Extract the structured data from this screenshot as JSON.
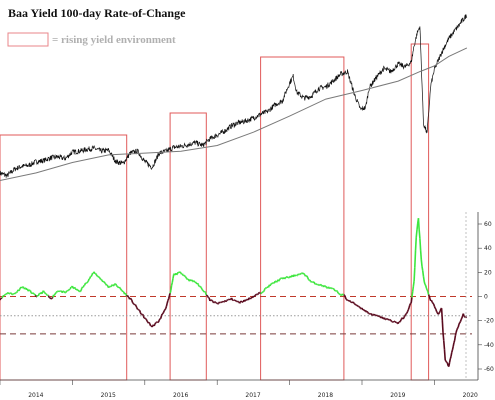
{
  "chart_data": {
    "type": "line",
    "title": "Baa Yield 100-day Rate-of-Change",
    "legend": {
      "label": "= rising yield environment",
      "swatch_color": "#e8868a",
      "placement": "top-left"
    },
    "x_ticks": [
      "2014",
      "2015",
      "2016",
      "2017",
      "2018",
      "2019",
      "2020"
    ],
    "y_ticks_right": [
      "60",
      "40",
      "20",
      "0",
      "-20",
      "-40",
      "-60"
    ],
    "ylim_lower": [
      -65,
      65
    ],
    "reference_lines": [
      {
        "value": 0,
        "style": "dashed",
        "color": "#c0392b"
      },
      {
        "value": -16,
        "style": "dotted",
        "color": "#9a9a9a"
      },
      {
        "value": -31,
        "style": "dashed",
        "color": "#7a3b3b"
      }
    ],
    "colors": {
      "price": "#111111",
      "moving_average": "#7a7a7a",
      "roc_positive": "#3ee63e",
      "roc_negative": "#5a0a1e",
      "box": "#e05a5a"
    },
    "rising_yield_periods": [
      {
        "start": 2014.0,
        "end": 2015.75
      },
      {
        "start": 2016.35,
        "end": 2016.85
      },
      {
        "start": 2017.6,
        "end": 2018.75
      },
      {
        "start": 2019.68,
        "end": 2019.92
      }
    ],
    "price_series": {
      "name": "",
      "x": [
        2014.0,
        2014.1,
        2014.2,
        2014.3,
        2014.4,
        2014.5,
        2014.6,
        2014.7,
        2014.8,
        2014.9,
        2015.0,
        2015.1,
        2015.2,
        2015.3,
        2015.4,
        2015.5,
        2015.6,
        2015.7,
        2015.8,
        2015.9,
        2016.0,
        2016.1,
        2016.2,
        2016.3,
        2016.4,
        2016.5,
        2016.6,
        2016.7,
        2016.8,
        2016.9,
        2017.0,
        2017.1,
        2017.2,
        2017.3,
        2017.4,
        2017.5,
        2017.6,
        2017.7,
        2017.8,
        2017.9,
        2018.0,
        2018.05,
        2018.1,
        2018.2,
        2018.3,
        2018.4,
        2018.5,
        2018.6,
        2018.7,
        2018.8,
        2018.9,
        2018.98,
        2019.05,
        2019.1,
        2019.2,
        2019.3,
        2019.4,
        2019.5,
        2019.6,
        2019.68,
        2019.72,
        2019.76,
        2019.8,
        2019.85,
        2019.9,
        2019.95,
        2020.0,
        2020.1,
        2020.2,
        2020.3,
        2020.4,
        2020.45
      ],
      "values": [
        1830,
        1800,
        1870,
        1900,
        1910,
        1950,
        1960,
        1990,
        2000,
        1980,
        2050,
        2060,
        2080,
        2090,
        2060,
        2070,
        1950,
        1930,
        2040,
        2060,
        1950,
        1890,
        2040,
        2060,
        2100,
        2110,
        2130,
        2150,
        2120,
        2190,
        2230,
        2270,
        2330,
        2360,
        2380,
        2410,
        2450,
        2480,
        2550,
        2590,
        2780,
        2850,
        2680,
        2620,
        2640,
        2720,
        2740,
        2800,
        2870,
        2900,
        2650,
        2500,
        2520,
        2730,
        2840,
        2930,
        2900,
        2980,
        2950,
        3000,
        3170,
        3300,
        3380,
        2350,
        2250,
        2750,
        2920,
        3100,
        3250,
        3350,
        3450,
        3500
      ]
    },
    "moving_average_series": {
      "name": "",
      "x": [
        2014.0,
        2014.5,
        2015.0,
        2015.5,
        2016.0,
        2016.5,
        2017.0,
        2017.5,
        2018.0,
        2018.5,
        2019.0,
        2019.5,
        2019.8,
        2020.0,
        2020.2,
        2020.45
      ],
      "values": [
        1750,
        1830,
        1940,
        2020,
        2040,
        2060,
        2120,
        2260,
        2430,
        2610,
        2700,
        2800,
        2900,
        2960,
        3060,
        3150
      ]
    },
    "roc_series": {
      "name": "",
      "x": [
        2014.0,
        2014.1,
        2014.2,
        2014.3,
        2014.4,
        2014.5,
        2014.6,
        2014.7,
        2014.8,
        2014.9,
        2015.0,
        2015.1,
        2015.2,
        2015.3,
        2015.4,
        2015.5,
        2015.6,
        2015.7,
        2015.75,
        2015.8,
        2015.9,
        2016.0,
        2016.1,
        2016.2,
        2016.3,
        2016.35,
        2016.4,
        2016.5,
        2016.6,
        2016.7,
        2016.8,
        2016.85,
        2016.9,
        2017.0,
        2017.1,
        2017.2,
        2017.3,
        2017.4,
        2017.5,
        2017.6,
        2017.7,
        2017.8,
        2017.9,
        2018.0,
        2018.1,
        2018.2,
        2018.3,
        2018.4,
        2018.5,
        2018.6,
        2018.7,
        2018.75,
        2018.8,
        2018.9,
        2019.0,
        2019.1,
        2019.2,
        2019.3,
        2019.4,
        2019.5,
        2019.6,
        2019.68,
        2019.72,
        2019.75,
        2019.78,
        2019.82,
        2019.86,
        2019.9,
        2019.92,
        2019.95,
        2020.0,
        2020.05,
        2020.1,
        2020.12,
        2020.15,
        2020.2,
        2020.3,
        2020.35,
        2020.4,
        2020.45
      ],
      "values": [
        -2,
        3,
        2,
        8,
        5,
        0,
        4,
        -2,
        5,
        3,
        8,
        4,
        12,
        20,
        14,
        8,
        10,
        4,
        1,
        -2,
        -10,
        -18,
        -25,
        -20,
        -8,
        2,
        18,
        20,
        14,
        12,
        6,
        2,
        -3,
        -6,
        -4,
        -2,
        -5,
        -3,
        0,
        3,
        8,
        12,
        15,
        16,
        18,
        19,
        12,
        10,
        8,
        6,
        2,
        1,
        -3,
        -6,
        -10,
        -14,
        -16,
        -18,
        -20,
        -22,
        -16,
        -5,
        12,
        50,
        65,
        30,
        12,
        5,
        2,
        -3,
        -8,
        -15,
        -10,
        -30,
        -52,
        -58,
        -30,
        -22,
        -15,
        -18
      ]
    }
  }
}
